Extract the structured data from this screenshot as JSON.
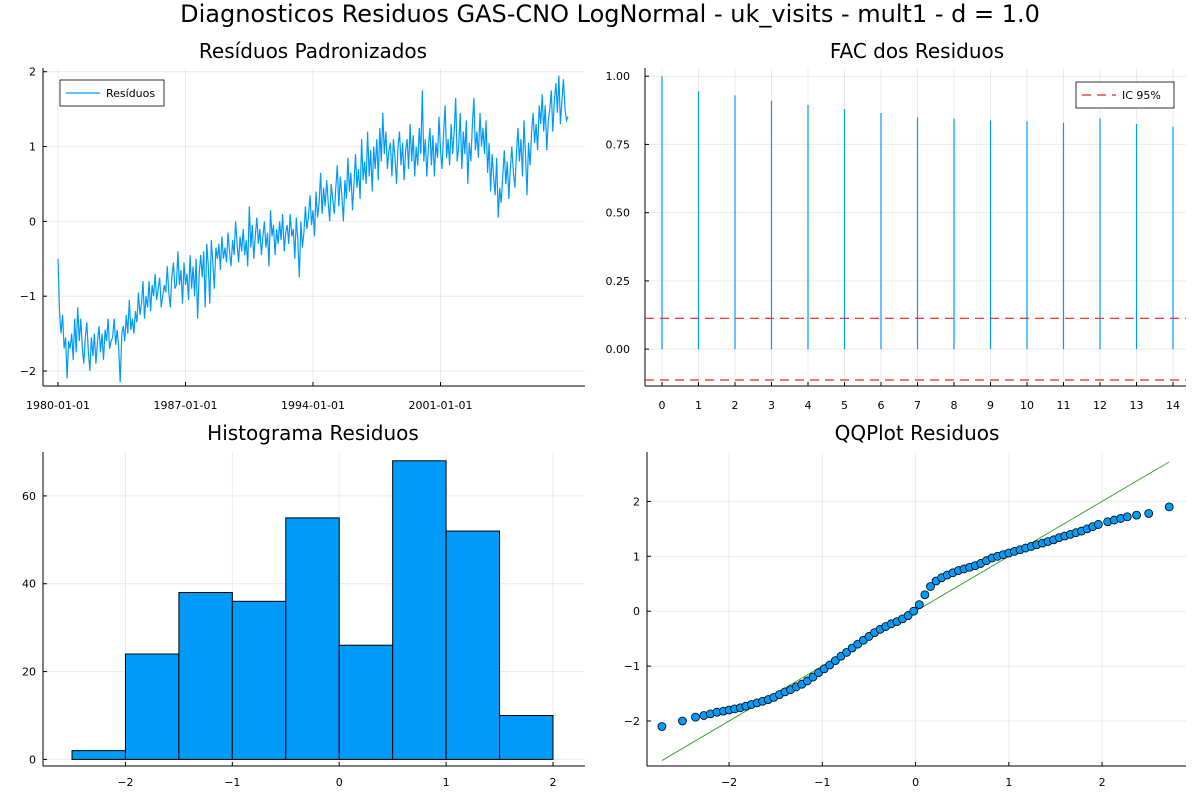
{
  "suptitle": "Diagnosticos Residuos  GAS-CNO LogNormal - uk_visits - mult1 - d = 1.0",
  "colors": {
    "series": "#009AFA",
    "ci": "#E26F46",
    "ci_line": "#E3261F",
    "qqline": "#3BA631",
    "marker_edge": "#000000"
  },
  "chart_data": [
    {
      "id": "residuals",
      "type": "line",
      "title": "Resíduos Padronizados",
      "legend": {
        "entries": [
          "Resíduos"
        ],
        "placement": "top-left"
      },
      "x_start": "1980-01-01",
      "frequency": "monthly",
      "x_ticks": [
        "1980-01-01",
        "1987-01-01",
        "1994-01-01",
        "2001-01-01"
      ],
      "y_ticks": [
        -2,
        -1,
        0,
        1,
        2
      ],
      "ylim": [
        -2.2,
        2.05
      ],
      "grid": true,
      "values": [
        -0.5,
        -1.2,
        -1.5,
        -1.25,
        -1.7,
        -1.55,
        -2.1,
        -1.6,
        -1.7,
        -1.5,
        -1.85,
        -1.3,
        -1.75,
        -1.15,
        -1.6,
        -1.3,
        -1.7,
        -1.9,
        -1.55,
        -1.35,
        -1.75,
        -2.0,
        -1.55,
        -1.8,
        -1.5,
        -1.9,
        -1.6,
        -1.4,
        -1.75,
        -1.5,
        -1.85,
        -1.45,
        -1.6,
        -1.3,
        -1.7,
        -1.6,
        -1.55,
        -1.3,
        -1.65,
        -1.45,
        -1.7,
        -2.15,
        -1.5,
        -1.4,
        -1.6,
        -1.25,
        -1.5,
        -1.05,
        -1.45,
        -1.3,
        -1.5,
        -1.2,
        -1.35,
        -0.95,
        -1.25,
        -1.1,
        -0.8,
        -1.3,
        -1.0,
        -1.15,
        -0.8,
        -1.2,
        -0.85,
        -1.0,
        -0.7,
        -1.05,
        -0.9,
        -0.75,
        -1.15,
        -1.0,
        -0.85,
        -0.95,
        -0.6,
        -0.95,
        -1.15,
        -0.75,
        -0.55,
        -0.9,
        -0.85,
        -0.4,
        -0.85,
        -0.65,
        -1.1,
        -0.55,
        -0.85,
        -0.7,
        -1.05,
        -0.45,
        -0.9,
        -0.6,
        -1.0,
        -0.5,
        -1.3,
        -0.7,
        -0.45,
        -0.75,
        -0.4,
        -1.15,
        -0.3,
        -0.6,
        -1.1,
        -0.25,
        -0.55,
        -0.9,
        -0.35,
        -0.5,
        -0.3,
        -0.65,
        -0.2,
        -0.5,
        -0.35,
        -0.55,
        -0.15,
        -0.4,
        -0.6,
        -0.25,
        -0.45,
        0.0,
        -0.3,
        -0.55,
        -0.2,
        -0.4,
        -0.1,
        -0.45,
        -0.25,
        -0.6,
        0.2,
        -0.35,
        -0.05,
        -0.5,
        -0.2,
        0.05,
        -0.3,
        -0.1,
        -0.45,
        -0.2,
        0.0,
        -0.35,
        -0.15,
        -0.6,
        0.15,
        -0.2,
        -0.05,
        -0.45,
        -0.1,
        -0.3,
        0.0,
        -0.25,
        0.1,
        -0.4,
        -0.15,
        -0.05,
        -0.3,
        0.1,
        -0.2,
        -0.1,
        -0.5,
        0.05,
        -0.25,
        -0.75,
        0.0,
        -0.35,
        -0.15,
        0.2,
        -0.1,
        0.05,
        0.35,
        -0.05,
        0.15,
        -0.2,
        0.4,
        0.05,
        0.25,
        0.65,
        0.1,
        0.45,
        0.2,
        0.55,
        0.25,
        0.0,
        0.5,
        0.3,
        0.1,
        0.45,
        0.75,
        0.2,
        0.6,
        0.35,
        0.0,
        0.55,
        0.3,
        0.85,
        0.4,
        0.65,
        0.15,
        0.5,
        0.9,
        0.45,
        0.7,
        0.3,
        1.1,
        0.55,
        0.8,
        0.5,
        1.2,
        0.6,
        0.95,
        0.4,
        1.0,
        0.7,
        1.1,
        0.55,
        1.25,
        0.8,
        1.45,
        0.9,
        1.2,
        0.7,
        0.95,
        1.05,
        0.6,
        1.1,
        0.85,
        0.5,
        1.0,
        1.2,
        0.75,
        1.05,
        0.55,
        0.95,
        1.1,
        0.7,
        1.3,
        0.8,
        1.15,
        0.6,
        1.0,
        0.75,
        1.25,
        0.9,
        1.75,
        0.8,
        1.1,
        0.6,
        1.0,
        1.25,
        0.75,
        1.15,
        0.6,
        1.05,
        0.85,
        1.4,
        0.95,
        0.7,
        1.15,
        1.55,
        0.85,
        1.1,
        0.75,
        1.3,
        0.9,
        1.2,
        1.65,
        0.8,
        1.0,
        1.45,
        0.7,
        1.2,
        0.9,
        1.35,
        0.5,
        1.05,
        0.8,
        1.3,
        1.65,
        0.95,
        1.2,
        0.85,
        1.45,
        1.0,
        1.25,
        0.9,
        1.35,
        0.65,
        1.05,
        0.4,
        0.9,
        0.6,
        0.35,
        0.85,
        0.05,
        0.45,
        0.25,
        0.6,
        0.95,
        0.5,
        0.8,
        0.3,
        0.7,
        1.0,
        0.65,
        0.45,
        0.9,
        1.25,
        0.8,
        1.1,
        0.6,
        1.35,
        0.9,
        0.35,
        1.05,
        0.75,
        1.2,
        1.45,
        1.05,
        1.3,
        0.95,
        1.55,
        1.3,
        1.7,
        1.2,
        1.55,
        0.95,
        1.35,
        1.5,
        1.75,
        1.2,
        1.6,
        1.85,
        1.45,
        1.95,
        1.3,
        1.6,
        1.9,
        1.5,
        1.35,
        1.4
      ]
    },
    {
      "id": "acf",
      "type": "bar",
      "title": "FAC dos Residuos",
      "legend": {
        "entries": [
          "IC 95%"
        ],
        "placement": "top-right"
      },
      "lags": [
        0,
        1,
        2,
        3,
        4,
        5,
        6,
        7,
        8,
        9,
        10,
        11,
        12,
        13,
        14
      ],
      "values": [
        1.0,
        0.945,
        0.93,
        0.91,
        0.895,
        0.88,
        0.865,
        0.85,
        0.845,
        0.838,
        0.835,
        0.83,
        0.845,
        0.825,
        0.815
      ],
      "ci": [
        0.113,
        -0.113
      ],
      "y_ticks": [
        "0.00",
        "0.25",
        "0.50",
        "0.75",
        "1.00"
      ],
      "ylim": [
        -0.135,
        1.03
      ],
      "grid": true
    },
    {
      "id": "histogram",
      "type": "bar",
      "title": "Histograma Residuos",
      "bin_edges": [
        -2.5,
        -2.0,
        -1.5,
        -1.0,
        -0.5,
        0.0,
        0.5,
        1.0,
        1.5,
        2.0
      ],
      "counts": [
        2,
        24,
        38,
        36,
        55,
        26,
        68,
        52,
        10
      ],
      "x_ticks": [
        -2,
        -1,
        0,
        1,
        2
      ],
      "y_ticks": [
        0,
        20,
        40,
        60
      ],
      "ylim": [
        -1.5,
        70
      ],
      "grid": true
    },
    {
      "id": "qqplot",
      "type": "scatter",
      "title": "QQPlot Residuos",
      "x_ticks": [
        -2,
        -1,
        0,
        1,
        2
      ],
      "y_ticks": [
        -2,
        -1,
        0,
        1,
        2
      ],
      "xlim": [
        -2.88,
        2.9
      ],
      "ylim": [
        -2.82,
        2.9
      ],
      "reference_line": [
        [
          -2.72,
          -2.72
        ],
        [
          2.72,
          2.72
        ]
      ],
      "grid": true,
      "points": [
        [
          -2.72,
          -2.1
        ],
        [
          -2.5,
          -2.0
        ],
        [
          -2.36,
          -1.93
        ],
        [
          -2.27,
          -1.9
        ],
        [
          -2.2,
          -1.87
        ],
        [
          -2.13,
          -1.84
        ],
        [
          -2.06,
          -1.82
        ],
        [
          -2.0,
          -1.8
        ],
        [
          -1.94,
          -1.78
        ],
        [
          -1.88,
          -1.76
        ],
        [
          -1.82,
          -1.73
        ],
        [
          -1.76,
          -1.7
        ],
        [
          -1.7,
          -1.67
        ],
        [
          -1.64,
          -1.64
        ],
        [
          -1.58,
          -1.61
        ],
        [
          -1.52,
          -1.57
        ],
        [
          -1.46,
          -1.52
        ],
        [
          -1.4,
          -1.47
        ],
        [
          -1.34,
          -1.43
        ],
        [
          -1.28,
          -1.38
        ],
        [
          -1.22,
          -1.33
        ],
        [
          -1.16,
          -1.27
        ],
        [
          -1.1,
          -1.2
        ],
        [
          -1.04,
          -1.12
        ],
        [
          -0.98,
          -1.05
        ],
        [
          -0.92,
          -0.98
        ],
        [
          -0.86,
          -0.9
        ],
        [
          -0.8,
          -0.82
        ],
        [
          -0.74,
          -0.75
        ],
        [
          -0.68,
          -0.67
        ],
        [
          -0.62,
          -0.6
        ],
        [
          -0.56,
          -0.53
        ],
        [
          -0.5,
          -0.46
        ],
        [
          -0.44,
          -0.39
        ],
        [
          -0.38,
          -0.33
        ],
        [
          -0.32,
          -0.28
        ],
        [
          -0.26,
          -0.23
        ],
        [
          -0.2,
          -0.19
        ],
        [
          -0.14,
          -0.14
        ],
        [
          -0.08,
          -0.08
        ],
        [
          -0.02,
          0.0
        ],
        [
          0.04,
          0.12
        ],
        [
          0.1,
          0.3
        ],
        [
          0.16,
          0.45
        ],
        [
          0.22,
          0.55
        ],
        [
          0.28,
          0.61
        ],
        [
          0.34,
          0.66
        ],
        [
          0.4,
          0.7
        ],
        [
          0.46,
          0.74
        ],
        [
          0.52,
          0.77
        ],
        [
          0.58,
          0.8
        ],
        [
          0.64,
          0.83
        ],
        [
          0.7,
          0.87
        ],
        [
          0.76,
          0.92
        ],
        [
          0.82,
          0.97
        ],
        [
          0.88,
          1.0
        ],
        [
          0.94,
          1.03
        ],
        [
          1.0,
          1.06
        ],
        [
          1.06,
          1.09
        ],
        [
          1.12,
          1.12
        ],
        [
          1.18,
          1.15
        ],
        [
          1.24,
          1.18
        ],
        [
          1.3,
          1.21
        ],
        [
          1.36,
          1.24
        ],
        [
          1.42,
          1.27
        ],
        [
          1.48,
          1.3
        ],
        [
          1.54,
          1.34
        ],
        [
          1.6,
          1.37
        ],
        [
          1.66,
          1.4
        ],
        [
          1.72,
          1.43
        ],
        [
          1.78,
          1.46
        ],
        [
          1.84,
          1.5
        ],
        [
          1.9,
          1.54
        ],
        [
          1.96,
          1.58
        ],
        [
          2.06,
          1.63
        ],
        [
          2.13,
          1.66
        ],
        [
          2.2,
          1.69
        ],
        [
          2.27,
          1.72
        ],
        [
          2.37,
          1.75
        ],
        [
          2.5,
          1.78
        ],
        [
          2.72,
          1.9
        ]
      ]
    }
  ]
}
